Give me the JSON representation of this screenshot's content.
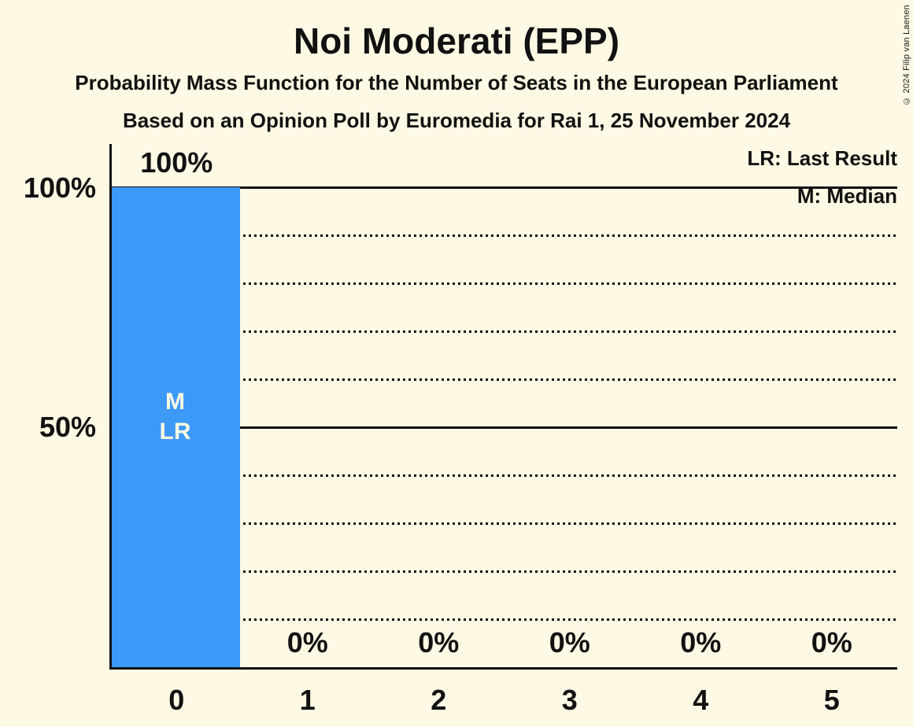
{
  "header": {
    "title": "Noi Moderati (EPP)",
    "subtitle1": "Probability Mass Function for the Number of Seats in the European Parliament",
    "subtitle2": "Based on an Opinion Poll by Euromedia for Rai 1, 25 November 2024"
  },
  "legend": {
    "last_result": "LR: Last Result",
    "median": "M: Median"
  },
  "meta": {
    "copyright": "© 2024 Filip van Laenen"
  },
  "colors": {
    "background": "#fdf9e4",
    "ink": "#111111",
    "bar": "#3d99f8",
    "bar_annotation_text": "#fdf9e4"
  },
  "chart_data": {
    "type": "bar",
    "title": "Noi Moderati (EPP)",
    "categories": [
      "0",
      "1",
      "2",
      "3",
      "4",
      "5"
    ],
    "values": [
      100,
      0,
      0,
      0,
      0,
      0
    ],
    "value_labels": [
      "100%",
      "0%",
      "0%",
      "0%",
      "0%",
      "0%"
    ],
    "ylim": [
      0,
      100
    ],
    "yticks": [
      {
        "value": 100,
        "label": "100%"
      },
      {
        "value": 50,
        "label": "50%"
      }
    ],
    "solid_gridlines": [
      100,
      50
    ],
    "dotted_gridlines": [
      90,
      80,
      70,
      60,
      40,
      30,
      20,
      10
    ],
    "annotation_lines": [
      "M",
      "LR"
    ],
    "annotated_seat": "0",
    "median_seats": 0,
    "last_result_seats": 0,
    "legend_position": "top-right",
    "grid": "horizontal-dotted-with-solid-at-50-and-100"
  }
}
